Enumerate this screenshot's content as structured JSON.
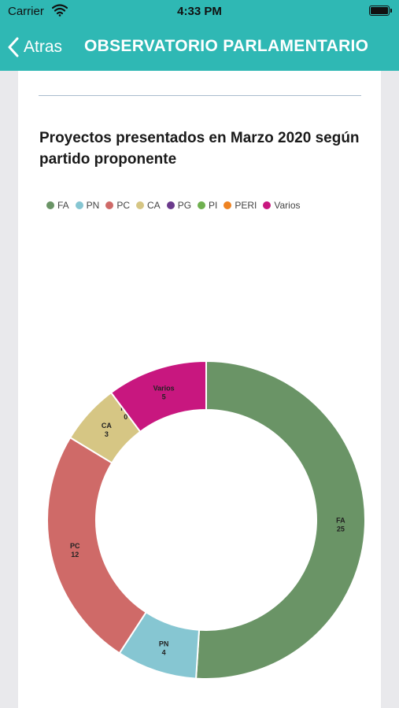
{
  "status": {
    "carrier": "Carrier",
    "time": "4:33 PM"
  },
  "nav": {
    "back_label": "Atras",
    "title": "OBSERVATORIO PARLAMENTARIO"
  },
  "chart_data": {
    "type": "pie",
    "donut": true,
    "title": "Proyectos presentados en Marzo 2020 según partido proponente",
    "legend_position": "top-left",
    "categories": [
      "FA",
      "PN",
      "PC",
      "CA",
      "PG",
      "PI",
      "PERI",
      "Varios"
    ],
    "values": [
      25,
      4,
      12,
      3,
      0,
      0,
      0,
      5
    ],
    "colors": [
      "#6a9466",
      "#86c6d2",
      "#cf6a68",
      "#d6c684",
      "#6b3a8c",
      "#6fb04f",
      "#ee8322",
      "#c8177f"
    ],
    "slice_labels_shown": [
      "FA",
      "PN",
      "PC",
      "CA",
      "PG",
      "Varios"
    ]
  }
}
